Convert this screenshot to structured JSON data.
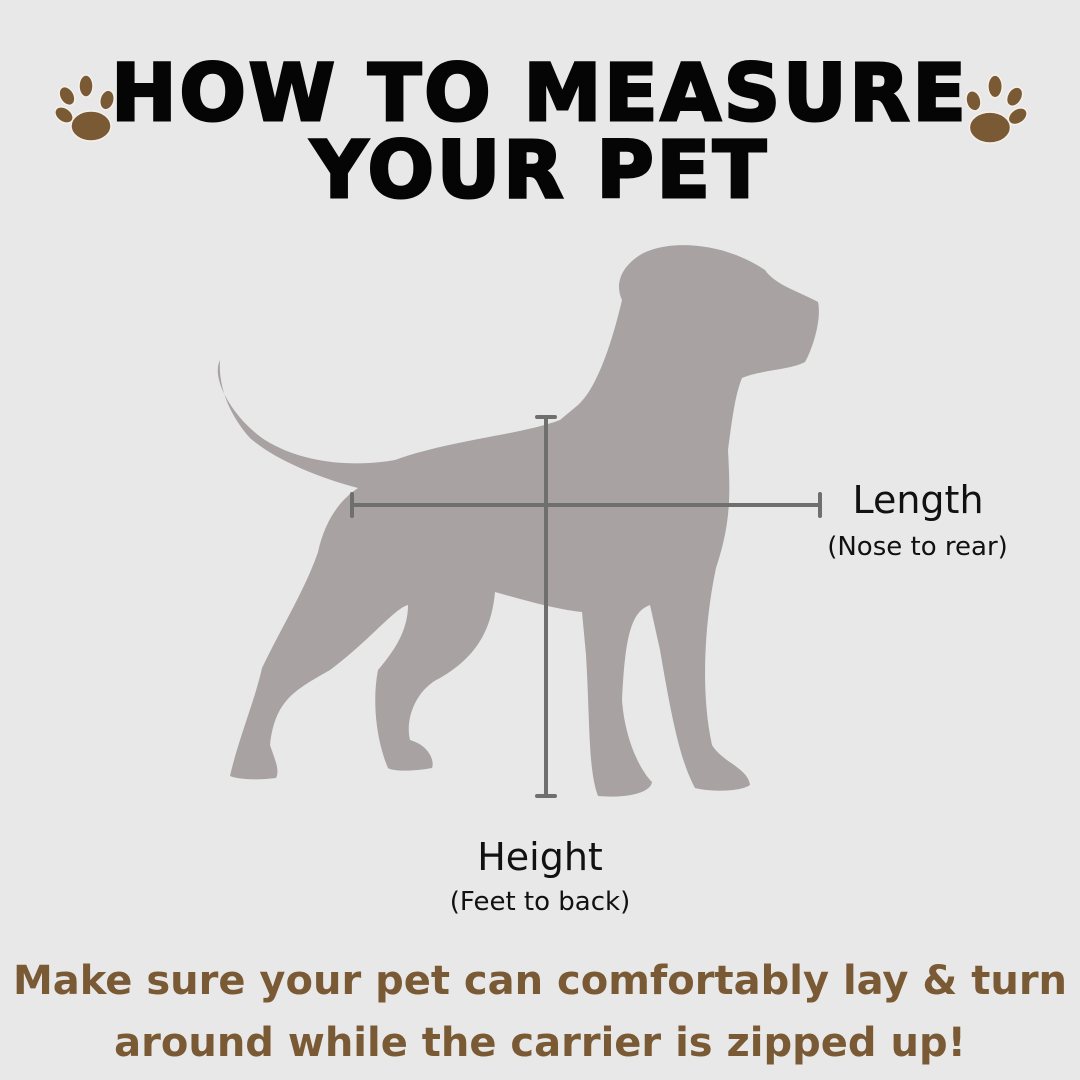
{
  "title": {
    "line1": "HOW TO MEASURE",
    "line2": "YOUR PET"
  },
  "labels": {
    "length": "Length",
    "length_sub": "(Nose to rear)",
    "height": "Height",
    "height_sub": "(Feet to back)"
  },
  "note": {
    "line1": "Make sure your pet can comfortably lay & turn",
    "line2": "around while the carrier is zipped up!"
  },
  "colors": {
    "background": "#e8e8e8",
    "accent": "#7a5a35",
    "silhouette": "#a8a3a2",
    "measure_line": "#6f6f6f"
  },
  "icons": [
    "paw-print-icon",
    "dog-silhouette"
  ]
}
